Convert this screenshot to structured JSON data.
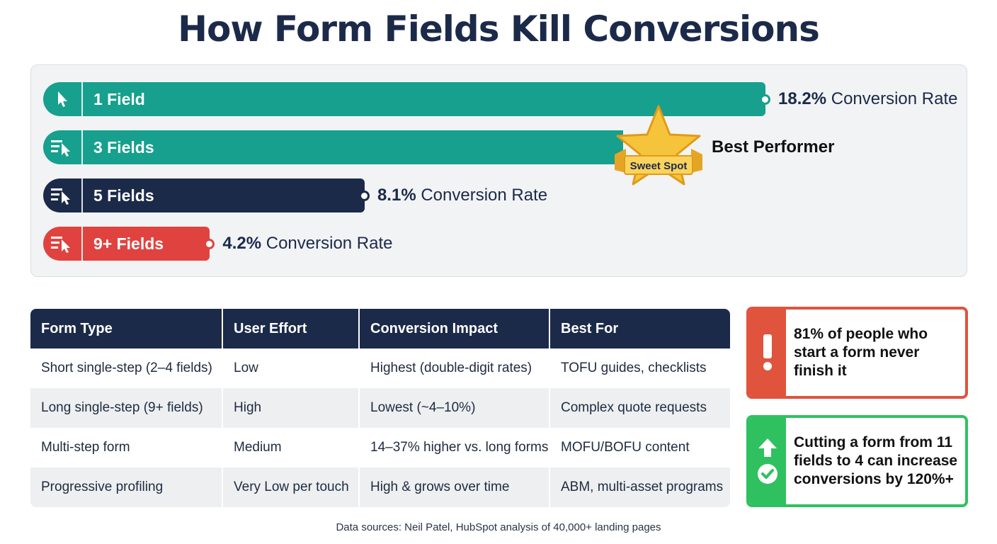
{
  "title": "How Form Fields Kill Conversions",
  "chart_data": {
    "type": "bar",
    "orientation": "horizontal",
    "categories": [
      "1 Field",
      "3 Fields",
      "5 Fields",
      "9+ Fields"
    ],
    "values": [
      18.2,
      null,
      8.1,
      4.2
    ],
    "value_suffix": "% Conversion Rate",
    "value_labels": [
      "18.2%",
      "",
      "8.1%",
      "4.2%"
    ],
    "colors": [
      "#16a08d",
      "#16a08d",
      "#1c2a4a",
      "#e0433f"
    ],
    "annotations": {
      "badge": "Sweet Spot",
      "best_label": "Best Performer"
    },
    "legend": "none",
    "grid": false
  },
  "table": {
    "headers": [
      "Form Type",
      "User Effort",
      "Conversion Impact",
      "Best For"
    ],
    "rows": [
      [
        "Short single-step (2–4 fields)",
        "Low",
        "Highest (double-digit rates)",
        "TOFU guides, checklists"
      ],
      [
        "Long single-step (9+ fields)",
        "High",
        "Lowest (~4–10%)",
        "Complex quote requests"
      ],
      [
        "Multi-step form",
        "Medium",
        "14–37% higher vs. long forms",
        "MOFU/BOFU content"
      ],
      [
        "Progressive profiling",
        "Very Low per touch",
        "High & grows over time",
        "ABM, multi-asset programs"
      ]
    ]
  },
  "callouts": {
    "warning": {
      "text": "81% of people who start a form never finish it",
      "icon": "exclamation-icon",
      "color": "#e0533d"
    },
    "tip": {
      "text": "Cutting a form from 11 fields to 4 can increase conversions by 120%+",
      "icon": "arrow-up-check-icon",
      "color": "#2fc160"
    }
  },
  "source": "Data sources: Neil Patel, HubSpot analysis of 40,000+ landing pages"
}
